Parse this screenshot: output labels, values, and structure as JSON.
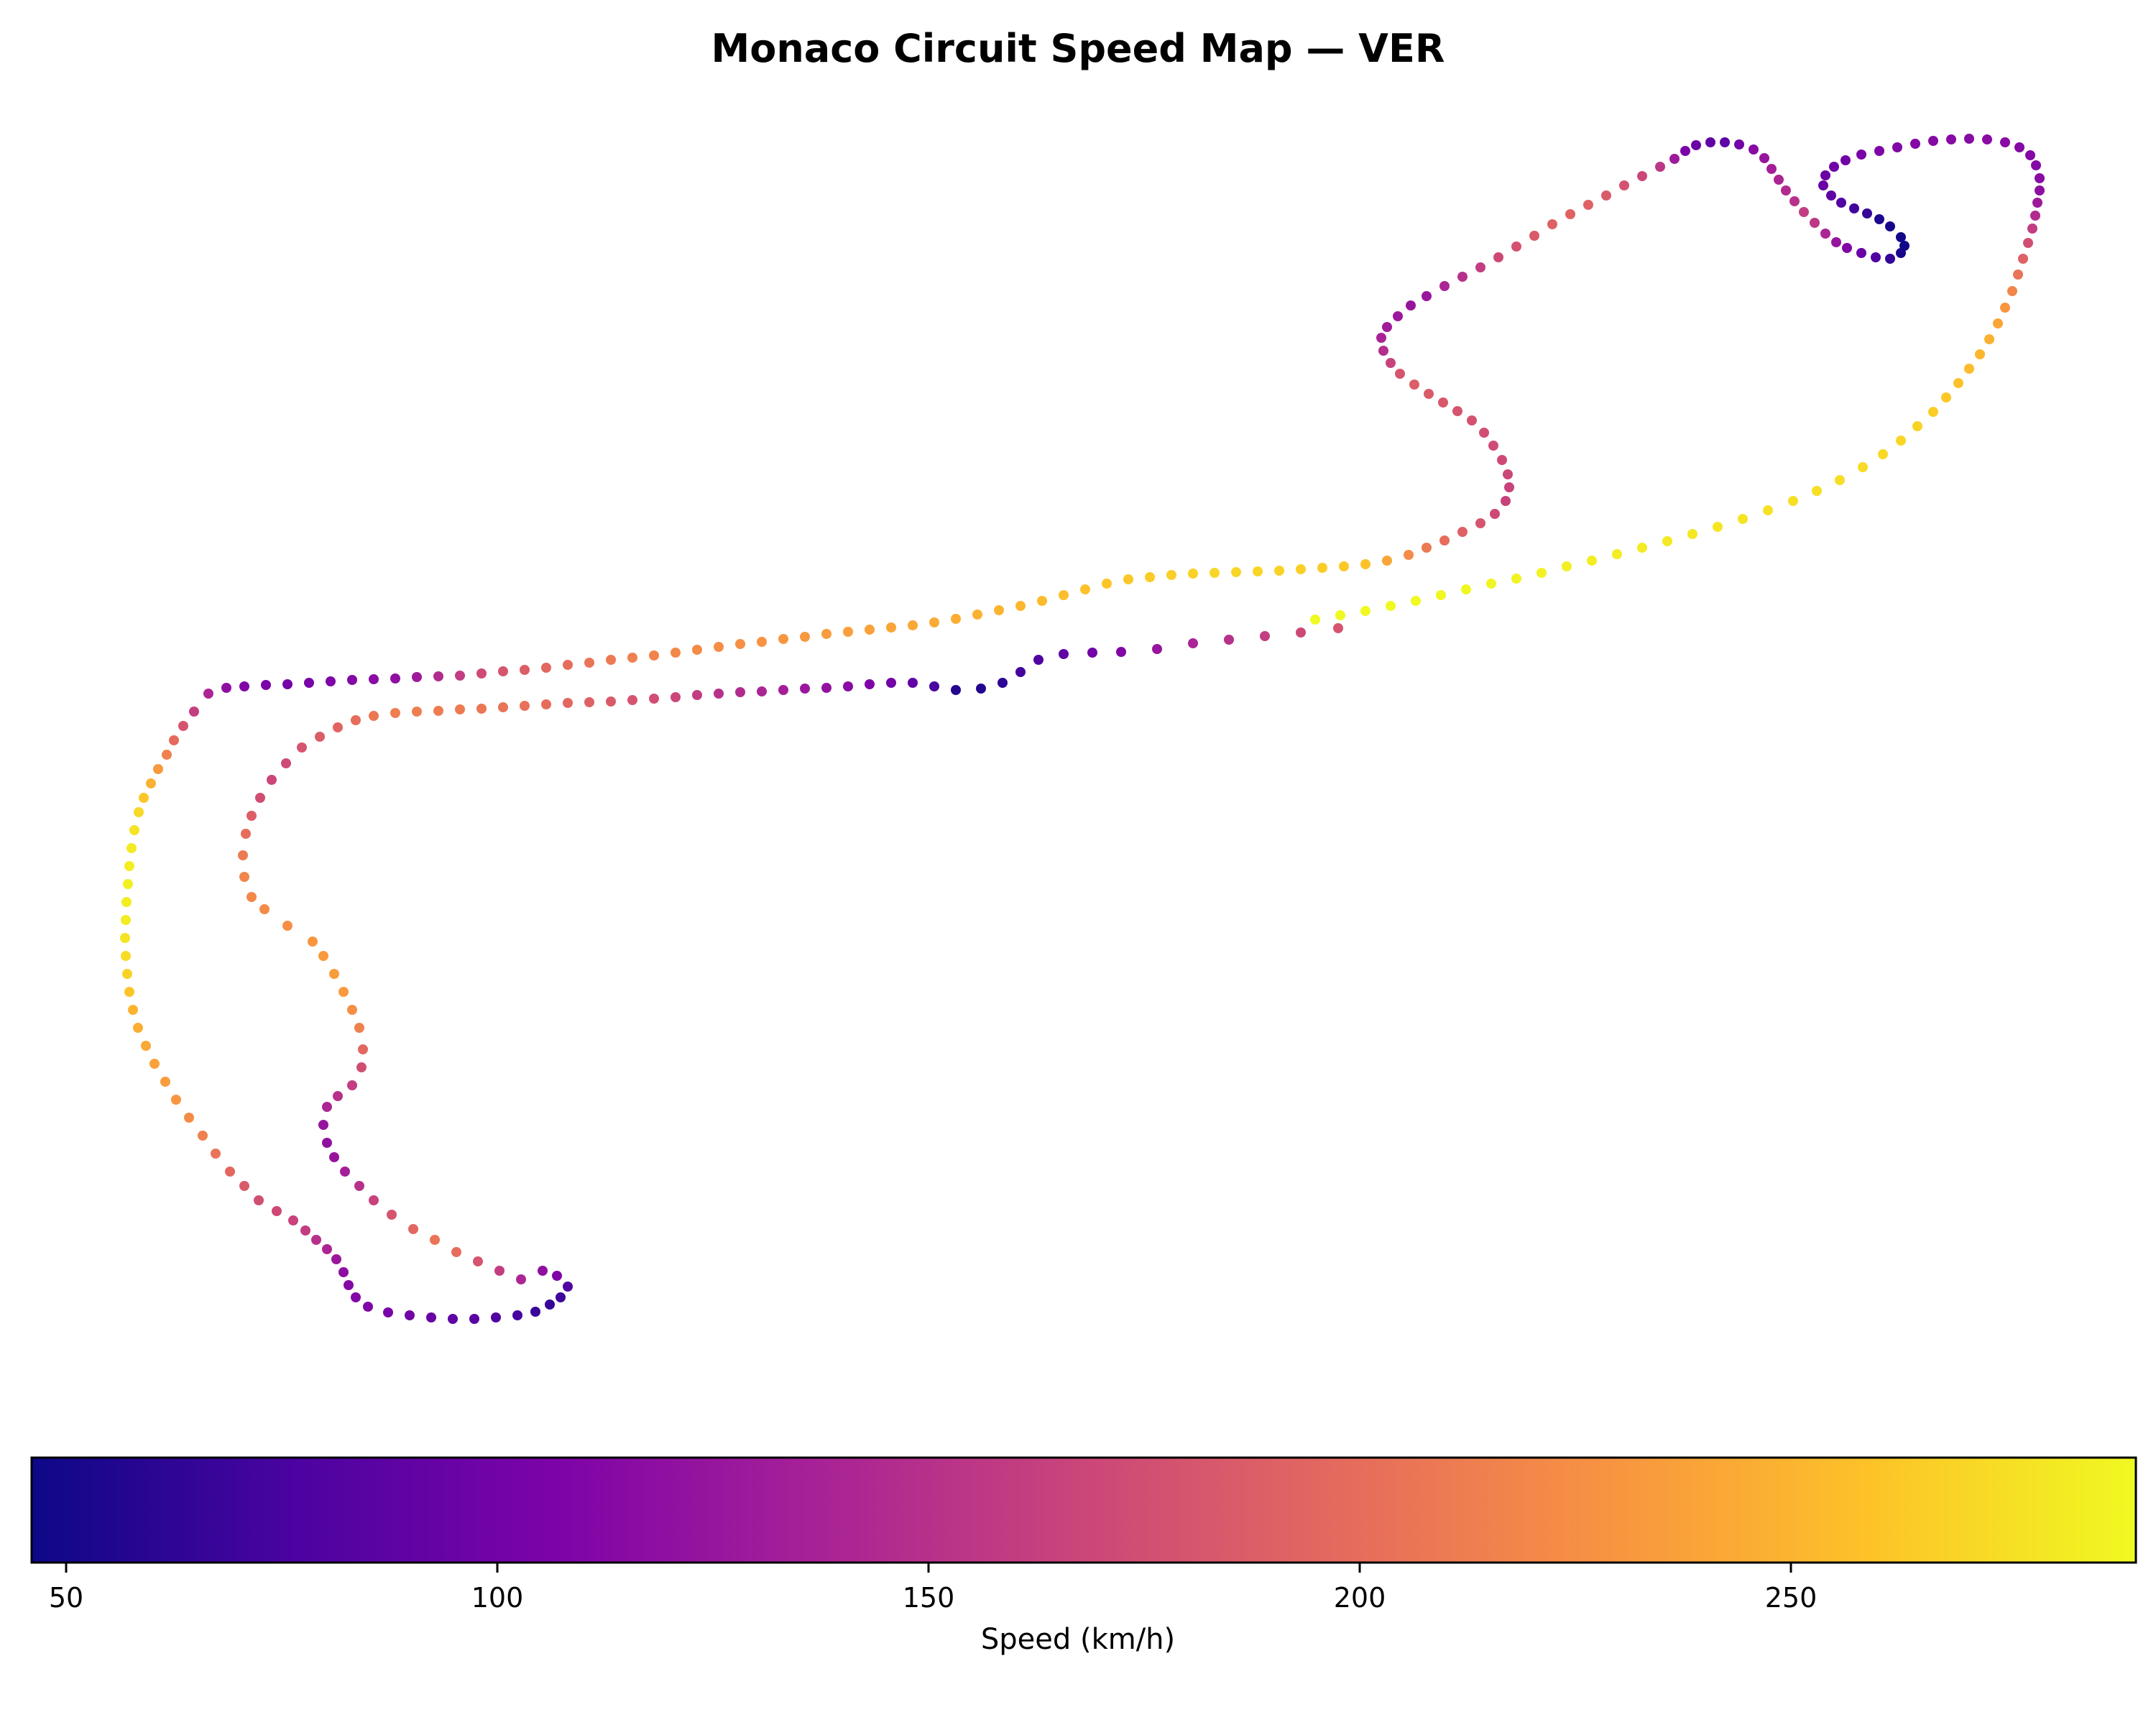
{
  "chart_data": {
    "type": "scatter",
    "title": "Monaco Circuit Speed Map — VER",
    "xlabel": "",
    "ylabel": "",
    "axes_visible": false,
    "grid": false,
    "colormap": "plasma",
    "colorbar": {
      "label": "Speed (km/h)",
      "orientation": "horizontal",
      "placement": "bottom",
      "range": [
        46,
        290
      ],
      "ticks": [
        50,
        100,
        150,
        200,
        250
      ],
      "tick_labels": [
        "50",
        "100",
        "150",
        "200",
        "250"
      ]
    },
    "points": [
      [
        1862,
        874,
        180
      ],
      [
        1810,
        880,
        170
      ],
      [
        1760,
        885,
        160
      ],
      [
        1710,
        890,
        150
      ],
      [
        1660,
        895,
        140
      ],
      [
        1610,
        903,
        125
      ],
      [
        1560,
        907,
        110
      ],
      [
        1520,
        908,
        100
      ],
      [
        1480,
        910,
        90
      ],
      [
        1445,
        918,
        80
      ],
      [
        1420,
        935,
        72
      ],
      [
        1395,
        950,
        62
      ],
      [
        1365,
        958,
        57
      ],
      [
        1330,
        960,
        58
      ],
      [
        1300,
        955,
        75
      ],
      [
        1270,
        950,
        90
      ],
      [
        1240,
        950,
        100
      ],
      [
        1210,
        952,
        108
      ],
      [
        1180,
        955,
        115
      ],
      [
        1150,
        957,
        122
      ],
      [
        1120,
        958,
        128
      ],
      [
        1090,
        960,
        135
      ],
      [
        1060,
        962,
        140
      ],
      [
        1030,
        963,
        145
      ],
      [
        1000,
        965,
        150
      ],
      [
        970,
        967,
        160
      ],
      [
        940,
        970,
        168
      ],
      [
        910,
        972,
        175
      ],
      [
        880,
        974,
        180
      ],
      [
        850,
        976,
        185
      ],
      [
        820,
        977,
        190
      ],
      [
        790,
        978,
        195
      ],
      [
        760,
        980,
        200
      ],
      [
        730,
        982,
        203
      ],
      [
        700,
        984,
        205
      ],
      [
        670,
        986,
        207
      ],
      [
        640,
        987,
        210
      ],
      [
        610,
        989,
        212
      ],
      [
        580,
        990,
        213
      ],
      [
        550,
        992,
        213
      ],
      [
        520,
        996,
        208
      ],
      [
        495,
        1002,
        200
      ],
      [
        470,
        1012,
        193
      ],
      [
        445,
        1025,
        187
      ],
      [
        420,
        1040,
        180
      ],
      [
        398,
        1062,
        172
      ],
      [
        378,
        1085,
        168
      ],
      [
        362,
        1110,
        175
      ],
      [
        350,
        1135,
        188
      ],
      [
        342,
        1160,
        200
      ],
      [
        338,
        1190,
        210
      ],
      [
        340,
        1220,
        218
      ],
      [
        350,
        1248,
        220
      ],
      [
        368,
        1265,
        222
      ],
      [
        400,
        1288,
        225
      ],
      [
        435,
        1310,
        230
      ],
      [
        450,
        1330,
        233
      ],
      [
        465,
        1355,
        235
      ],
      [
        478,
        1380,
        233
      ],
      [
        490,
        1405,
        225
      ],
      [
        500,
        1430,
        215
      ],
      [
        505,
        1460,
        195
      ],
      [
        503,
        1485,
        175
      ],
      [
        490,
        1510,
        160
      ],
      [
        470,
        1525,
        150
      ],
      [
        455,
        1540,
        140
      ],
      [
        450,
        1565,
        125
      ],
      [
        455,
        1590,
        120
      ],
      [
        465,
        1610,
        125
      ],
      [
        480,
        1630,
        135
      ],
      [
        500,
        1650,
        150
      ],
      [
        520,
        1670,
        165
      ],
      [
        545,
        1690,
        180
      ],
      [
        575,
        1710,
        195
      ],
      [
        605,
        1725,
        205
      ],
      [
        635,
        1742,
        200
      ],
      [
        665,
        1755,
        180
      ],
      [
        695,
        1768,
        160
      ],
      [
        725,
        1780,
        140
      ],
      [
        755,
        1768,
        120
      ],
      [
        775,
        1775,
        108
      ],
      [
        790,
        1790,
        80
      ],
      [
        780,
        1805,
        70
      ],
      [
        765,
        1815,
        65
      ],
      [
        745,
        1825,
        68
      ],
      [
        720,
        1830,
        75
      ],
      [
        690,
        1833,
        80
      ],
      [
        660,
        1835,
        85
      ],
      [
        630,
        1835,
        88
      ],
      [
        600,
        1833,
        95
      ],
      [
        570,
        1830,
        100
      ],
      [
        540,
        1826,
        105
      ],
      [
        512,
        1818,
        110
      ],
      [
        495,
        1805,
        112
      ],
      [
        485,
        1788,
        113
      ],
      [
        478,
        1770,
        118
      ],
      [
        468,
        1752,
        128
      ],
      [
        455,
        1738,
        140
      ],
      [
        440,
        1725,
        150
      ],
      [
        425,
        1712,
        160
      ],
      [
        408,
        1698,
        165
      ],
      [
        385,
        1685,
        170
      ],
      [
        360,
        1670,
        175
      ],
      [
        340,
        1650,
        185
      ],
      [
        320,
        1630,
        195
      ],
      [
        300,
        1605,
        205
      ],
      [
        282,
        1580,
        215
      ],
      [
        263,
        1555,
        223
      ],
      [
        245,
        1530,
        230
      ],
      [
        230,
        1505,
        235
      ],
      [
        215,
        1480,
        238
      ],
      [
        203,
        1455,
        242
      ],
      [
        192,
        1430,
        245
      ],
      [
        185,
        1405,
        250
      ],
      [
        180,
        1380,
        260
      ],
      [
        177,
        1355,
        268
      ],
      [
        175,
        1330,
        273
      ],
      [
        174,
        1305,
        278
      ],
      [
        175,
        1280,
        282
      ],
      [
        176,
        1255,
        284
      ],
      [
        178,
        1230,
        285
      ],
      [
        180,
        1205,
        284
      ],
      [
        183,
        1180,
        282
      ],
      [
        187,
        1155,
        278
      ],
      [
        193,
        1130,
        272
      ],
      [
        200,
        1110,
        262
      ],
      [
        210,
        1090,
        248
      ],
      [
        220,
        1070,
        232
      ],
      [
        232,
        1050,
        215
      ],
      [
        242,
        1030,
        198
      ],
      [
        255,
        1010,
        180
      ],
      [
        270,
        990,
        162
      ],
      [
        290,
        965,
        140
      ],
      [
        315,
        957,
        120
      ],
      [
        340,
        955,
        110
      ],
      [
        370,
        953,
        105
      ],
      [
        400,
        952,
        102
      ],
      [
        430,
        950,
        104
      ],
      [
        460,
        948,
        108
      ],
      [
        490,
        946,
        112
      ],
      [
        520,
        945,
        116
      ],
      [
        550,
        944,
        120
      ],
      [
        580,
        942,
        130
      ],
      [
        610,
        941,
        145
      ],
      [
        640,
        940,
        160
      ],
      [
        670,
        937,
        172
      ],
      [
        700,
        934,
        180
      ],
      [
        730,
        932,
        188
      ],
      [
        760,
        929,
        195
      ],
      [
        790,
        925,
        200
      ],
      [
        820,
        922,
        205
      ],
      [
        850,
        918,
        210
      ],
      [
        880,
        915,
        214
      ],
      [
        910,
        912,
        217
      ],
      [
        940,
        908,
        220
      ],
      [
        970,
        904,
        222
      ],
      [
        1000,
        900,
        224
      ],
      [
        1030,
        896,
        226
      ],
      [
        1060,
        893,
        228
      ],
      [
        1090,
        889,
        230
      ],
      [
        1120,
        886,
        232
      ],
      [
        1150,
        882,
        234
      ],
      [
        1180,
        879,
        236
      ],
      [
        1210,
        876,
        238
      ],
      [
        1240,
        873,
        240
      ],
      [
        1270,
        870,
        242
      ],
      [
        1300,
        866,
        244
      ],
      [
        1330,
        861,
        246
      ],
      [
        1360,
        855,
        248
      ],
      [
        1390,
        849,
        250
      ],
      [
        1420,
        843,
        252
      ],
      [
        1450,
        836,
        254
      ],
      [
        1480,
        828,
        256
      ],
      [
        1510,
        820,
        258
      ],
      [
        1540,
        812,
        260
      ],
      [
        1570,
        806,
        262
      ],
      [
        1600,
        803,
        264
      ],
      [
        1630,
        800,
        266
      ],
      [
        1660,
        798,
        268
      ],
      [
        1690,
        797,
        270
      ],
      [
        1720,
        796,
        270
      ],
      [
        1750,
        795,
        270
      ],
      [
        1780,
        794,
        268
      ],
      [
        1810,
        792,
        266
      ],
      [
        1840,
        790,
        264
      ],
      [
        1870,
        788,
        262
      ],
      [
        1900,
        785,
        258
      ],
      [
        1930,
        780,
        240
      ],
      [
        1960,
        772,
        222
      ],
      [
        1985,
        762,
        210
      ],
      [
        2010,
        752,
        200
      ],
      [
        2035,
        740,
        190
      ],
      [
        2060,
        728,
        180
      ],
      [
        2080,
        715,
        170
      ],
      [
        2095,
        697,
        165
      ],
      [
        2100,
        678,
        165
      ],
      [
        2098,
        660,
        168
      ],
      [
        2090,
        640,
        170
      ],
      [
        2078,
        620,
        172
      ],
      [
        2065,
        602,
        175
      ],
      [
        2048,
        585,
        178
      ],
      [
        2028,
        572,
        180
      ],
      [
        2008,
        560,
        183
      ],
      [
        1988,
        548,
        185
      ],
      [
        1968,
        535,
        187
      ],
      [
        1948,
        520,
        180
      ],
      [
        1935,
        505,
        165
      ],
      [
        1925,
        488,
        148
      ],
      [
        1922,
        470,
        138
      ],
      [
        1930,
        455,
        132
      ],
      [
        1945,
        440,
        128
      ],
      [
        1963,
        425,
        125
      ],
      [
        1985,
        412,
        127
      ],
      [
        2010,
        398,
        140
      ],
      [
        2035,
        385,
        150
      ],
      [
        2060,
        372,
        160
      ],
      [
        2085,
        358,
        170
      ],
      [
        2110,
        343,
        178
      ],
      [
        2135,
        328,
        185
      ],
      [
        2160,
        312,
        190
      ],
      [
        2185,
        298,
        192
      ],
      [
        2210,
        285,
        190
      ],
      [
        2235,
        272,
        185
      ],
      [
        2260,
        258,
        178
      ],
      [
        2285,
        245,
        168
      ],
      [
        2310,
        232,
        155
      ],
      [
        2330,
        221,
        130
      ],
      [
        2345,
        210,
        105
      ],
      [
        2360,
        202,
        95
      ],
      [
        2380,
        198,
        90
      ],
      [
        2400,
        198,
        88
      ],
      [
        2420,
        201,
        100
      ],
      [
        2440,
        208,
        115
      ],
      [
        2455,
        220,
        125
      ],
      [
        2465,
        235,
        135
      ],
      [
        2475,
        250,
        140
      ],
      [
        2485,
        265,
        145
      ],
      [
        2497,
        280,
        150
      ],
      [
        2510,
        295,
        160
      ],
      [
        2525,
        310,
        155
      ],
      [
        2540,
        325,
        140
      ],
      [
        2555,
        337,
        125
      ],
      [
        2570,
        345,
        110
      ],
      [
        2590,
        352,
        95
      ],
      [
        2610,
        358,
        80
      ],
      [
        2630,
        360,
        65
      ],
      [
        2645,
        352,
        52
      ],
      [
        2650,
        342,
        48
      ],
      [
        2645,
        330,
        48
      ],
      [
        2630,
        315,
        50
      ],
      [
        2615,
        305,
        55
      ],
      [
        2598,
        297,
        65
      ],
      [
        2580,
        290,
        72
      ],
      [
        2562,
        282,
        82
      ],
      [
        2548,
        272,
        90
      ],
      [
        2537,
        258,
        95
      ],
      [
        2540,
        244,
        96
      ],
      [
        2552,
        232,
        98
      ],
      [
        2568,
        223,
        100
      ],
      [
        2590,
        215,
        105
      ],
      [
        2615,
        210,
        108
      ],
      [
        2640,
        205,
        110
      ],
      [
        2665,
        200,
        112
      ],
      [
        2690,
        196,
        113
      ],
      [
        2715,
        194,
        114
      ],
      [
        2740,
        193,
        115
      ],
      [
        2765,
        194,
        116
      ],
      [
        2790,
        198,
        115
      ],
      [
        2810,
        205,
        113
      ],
      [
        2825,
        216,
        112
      ],
      [
        2833,
        230,
        113
      ],
      [
        2838,
        248,
        115
      ],
      [
        2838,
        265,
        118
      ],
      [
        2835,
        282,
        130
      ],
      [
        2832,
        300,
        145
      ],
      [
        2828,
        318,
        160
      ],
      [
        2822,
        338,
        175
      ],
      [
        2815,
        360,
        190
      ],
      [
        2808,
        382,
        205
      ],
      [
        2800,
        405,
        218
      ],
      [
        2790,
        428,
        230
      ],
      [
        2780,
        450,
        240
      ],
      [
        2768,
        472,
        248
      ],
      [
        2755,
        493,
        252
      ],
      [
        2740,
        513,
        255
      ],
      [
        2725,
        533,
        258
      ],
      [
        2708,
        553,
        262
      ],
      [
        2690,
        573,
        265
      ],
      [
        2668,
        593,
        268
      ],
      [
        2645,
        613,
        270
      ],
      [
        2620,
        632,
        272
      ],
      [
        2592,
        650,
        273
      ],
      [
        2560,
        668,
        274
      ],
      [
        2528,
        683,
        275
      ],
      [
        2495,
        697,
        276
      ],
      [
        2460,
        710,
        277
      ],
      [
        2425,
        722,
        278
      ],
      [
        2390,
        733,
        279
      ],
      [
        2355,
        743,
        280
      ],
      [
        2320,
        753,
        281
      ],
      [
        2285,
        762,
        282
      ],
      [
        2250,
        771,
        283
      ],
      [
        2215,
        780,
        284
      ],
      [
        2180,
        788,
        285
      ],
      [
        2145,
        797,
        286
      ],
      [
        2110,
        805,
        287
      ],
      [
        2075,
        812,
        288
      ],
      [
        2040,
        820,
        289
      ],
      [
        2005,
        828,
        289
      ],
      [
        1970,
        836,
        290
      ],
      [
        1935,
        843,
        290
      ],
      [
        1900,
        850,
        290
      ],
      [
        1865,
        856,
        290
      ],
      [
        1830,
        862,
        290
      ]
    ]
  }
}
